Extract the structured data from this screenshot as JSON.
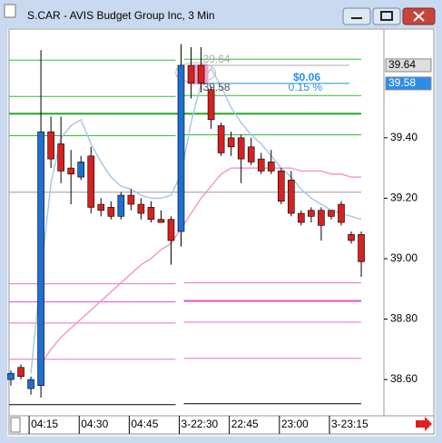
{
  "window": {
    "title": "S.CAR - AVIS Budget Group Inc, 3 Min"
  },
  "chart_data": {
    "type": "candlestick",
    "categories": [
      null,
      null,
      null,
      "04:15",
      null,
      null,
      null,
      null,
      "04:30",
      null,
      null,
      null,
      null,
      "04:45",
      null,
      null,
      null,
      null,
      "3-22:30",
      null,
      null,
      null,
      null,
      "22:45",
      null,
      null,
      null,
      null,
      "23:00",
      null,
      null,
      null,
      null,
      "3-23:15",
      null,
      null
    ],
    "open": [
      38.6,
      38.64,
      38.57,
      38.58,
      39.42,
      39.38,
      39.3,
      39.27,
      39.34,
      39.18,
      39.17,
      39.14,
      39.21,
      39.18,
      39.17,
      39.13,
      39.13,
      39.09,
      39.64,
      39.64,
      39.56,
      39.44,
      39.4,
      39.4,
      39.37,
      39.33,
      39.32,
      39.29,
      39.26,
      39.15,
      39.16,
      39.16,
      39.16,
      39.18,
      39.08,
      39.08
    ],
    "high": [
      38.63,
      38.65,
      38.61,
      39.69,
      39.47,
      39.47,
      39.36,
      39.34,
      39.37,
      39.2,
      39.19,
      39.22,
      39.23,
      39.2,
      39.19,
      39.16,
      39.14,
      39.71,
      39.7,
      39.7,
      39.57,
      39.45,
      39.42,
      39.41,
      39.4,
      39.35,
      39.36,
      39.3,
      39.29,
      39.16,
      39.17,
      39.17,
      39.16,
      39.19,
      39.09,
      39.09
    ],
    "low": [
      38.58,
      38.6,
      38.55,
      38.54,
      39.3,
      39.25,
      39.18,
      39.26,
      39.15,
      39.14,
      39.13,
      39.13,
      39.16,
      39.13,
      39.12,
      39.12,
      38.98,
      39.04,
      39.53,
      39.55,
      39.43,
      39.34,
      39.34,
      39.25,
      39.31,
      39.28,
      39.28,
      39.18,
      39.14,
      39.11,
      39.12,
      39.06,
      39.13,
      39.11,
      39.05,
      38.94
    ],
    "close": [
      38.62,
      38.61,
      38.6,
      39.42,
      39.33,
      39.29,
      39.28,
      39.32,
      39.17,
      39.16,
      39.14,
      39.21,
      39.18,
      39.15,
      39.13,
      39.12,
      39.06,
      39.64,
      39.58,
      39.58,
      39.46,
      39.35,
      39.37,
      39.33,
      39.32,
      39.29,
      39.29,
      39.19,
      39.15,
      39.12,
      39.14,
      39.11,
      39.14,
      39.12,
      39.06,
      38.99
    ],
    "up_color": "#1f6fd1",
    "down_color": "#d42222",
    "lines": [
      {
        "color": "#a9c8e6",
        "values": [
          null,
          null,
          38.62,
          38.95,
          39.25,
          39.4,
          39.44,
          39.46,
          39.38,
          39.32,
          39.27,
          39.24,
          39.23,
          39.21,
          39.2,
          39.2,
          39.21,
          39.28,
          39.45,
          39.58,
          39.63,
          39.57,
          39.5,
          39.45,
          39.41,
          39.38,
          39.34,
          39.3,
          39.27,
          39.23,
          39.2,
          39.18,
          39.16,
          39.15,
          39.14,
          39.13
        ]
      },
      {
        "color": "#f39ac8",
        "values": [
          null,
          null,
          null,
          38.65,
          38.7,
          38.74,
          38.77,
          38.8,
          38.83,
          38.86,
          38.89,
          38.92,
          38.95,
          38.98,
          39.0,
          39.03,
          39.05,
          39.1,
          39.15,
          39.2,
          39.24,
          39.28,
          39.3,
          39.3,
          39.3,
          39.3,
          39.3,
          39.3,
          39.3,
          39.29,
          39.29,
          39.29,
          39.28,
          39.28,
          39.27,
          39.27
        ]
      }
    ],
    "levels": [
      {
        "value": 39.66,
        "color": "#33bb33"
      },
      {
        "value": 39.54,
        "color": "#33bb33"
      },
      {
        "value": 39.48,
        "color": "#22aa22"
      },
      {
        "value": 39.41,
        "color": "#33bb33"
      },
      {
        "value": 39.22,
        "color": "#999999"
      },
      {
        "value": 38.92,
        "color": "#e070d0"
      },
      {
        "value": 38.86,
        "color": "#e050d0"
      },
      {
        "value": 38.79,
        "color": "#e070d0"
      },
      {
        "value": 38.67,
        "color": "#e070d0"
      },
      {
        "value": 38.52,
        "color": "#000000"
      }
    ],
    "ylim": [
      38.48,
      39.76
    ],
    "yticks": [
      {
        "value": 39.4,
        "label": "39.40"
      },
      {
        "value": 39.2,
        "label": "39.20"
      },
      {
        "value": 39.0,
        "label": "39.00"
      },
      {
        "value": 38.8,
        "label": "38.80"
      },
      {
        "value": 38.6,
        "label": "38.60"
      }
    ],
    "price_labels": [
      {
        "value": 39.64,
        "label": "39.64",
        "color": "#dddddd"
      },
      {
        "value": 39.58,
        "label": "39.58",
        "color": "#2a8ee8"
      }
    ],
    "measure": {
      "start": {
        "value": 39.64,
        "label": "39.64"
      },
      "end": {
        "value": 39.58,
        "label": "39.58"
      },
      "change": {
        "value": 0.06,
        "label": "$0.06"
      },
      "percent": {
        "value": 0.15,
        "label": "0.15 %"
      }
    }
  }
}
